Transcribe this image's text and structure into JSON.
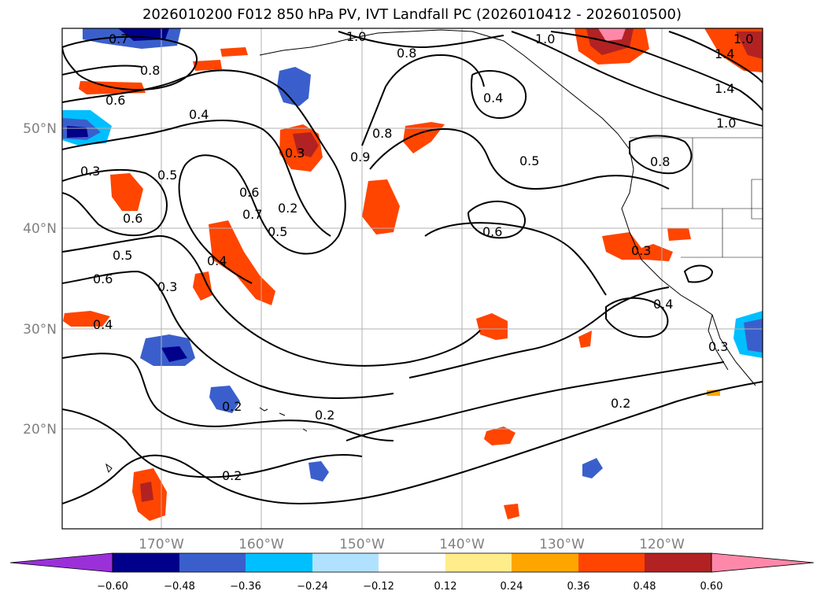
{
  "title": "2026010200 F012 850 hPa PV, IVT Landfall PC (2026010412 - 2026010500)",
  "lat_ticks": [
    "20°N",
    "30°N",
    "40°N",
    "50°N"
  ],
  "lon_ticks": [
    "170°W",
    "160°W",
    "150°W",
    "140°W",
    "130°W",
    "120°W"
  ],
  "colorbar": {
    "tick_labels": [
      "−0.60",
      "−0.48",
      "−0.36",
      "−0.24",
      "−0.12",
      "0.12",
      "0.24",
      "0.36",
      "0.48",
      "0.60"
    ],
    "colors": [
      "#9b30d9",
      "#00008b",
      "#3a5fcd",
      "#00bfff",
      "#b0e2ff",
      "#ffffff",
      "#ffec8b",
      "#ffa500",
      "#ff4500",
      "#b22222",
      "#ff88aa"
    ]
  },
  "contour_labels": [
    {
      "id": "c1",
      "text": "0.7"
    },
    {
      "id": "c2",
      "text": "0.8"
    },
    {
      "id": "c3",
      "text": "0.6"
    },
    {
      "id": "c4",
      "text": "0.4"
    },
    {
      "id": "c5",
      "text": "0.3"
    },
    {
      "id": "c6",
      "text": "0.5"
    },
    {
      "id": "c7",
      "text": "0.6"
    },
    {
      "id": "c8",
      "text": "0.5"
    },
    {
      "id": "c9",
      "text": "0.6"
    },
    {
      "id": "c10",
      "text": "0.3"
    },
    {
      "id": "c11",
      "text": "0.4"
    },
    {
      "id": "c12",
      "text": "0.4"
    },
    {
      "id": "c13",
      "text": "0.6"
    },
    {
      "id": "c14",
      "text": "0.7"
    },
    {
      "id": "c15",
      "text": "0.3"
    },
    {
      "id": "c16",
      "text": "0.2"
    },
    {
      "id": "c17",
      "text": "0.5"
    },
    {
      "id": "c18",
      "text": "0.9"
    },
    {
      "id": "c19",
      "text": "0.8"
    },
    {
      "id": "c20",
      "text": "1.0"
    },
    {
      "id": "c21",
      "text": "0.8"
    },
    {
      "id": "c22",
      "text": "0.4"
    },
    {
      "id": "c23",
      "text": "0.5"
    },
    {
      "id": "c24",
      "text": "0.6"
    },
    {
      "id": "c25",
      "text": "0.8"
    },
    {
      "id": "c26",
      "text": "1.0"
    },
    {
      "id": "c27",
      "text": "1.4"
    },
    {
      "id": "c28",
      "text": "1.4"
    },
    {
      "id": "c29",
      "text": "1.0"
    },
    {
      "id": "c30",
      "text": "0.3"
    },
    {
      "id": "c31",
      "text": "0.4"
    },
    {
      "id": "c32",
      "text": "0.3"
    },
    {
      "id": "c33",
      "text": "0.2"
    },
    {
      "id": "c34",
      "text": "0.2"
    },
    {
      "id": "c35",
      "text": "0.2"
    },
    {
      "id": "c36",
      "text": "0.2"
    },
    {
      "id": "c37",
      "text": "1.0"
    }
  ]
}
